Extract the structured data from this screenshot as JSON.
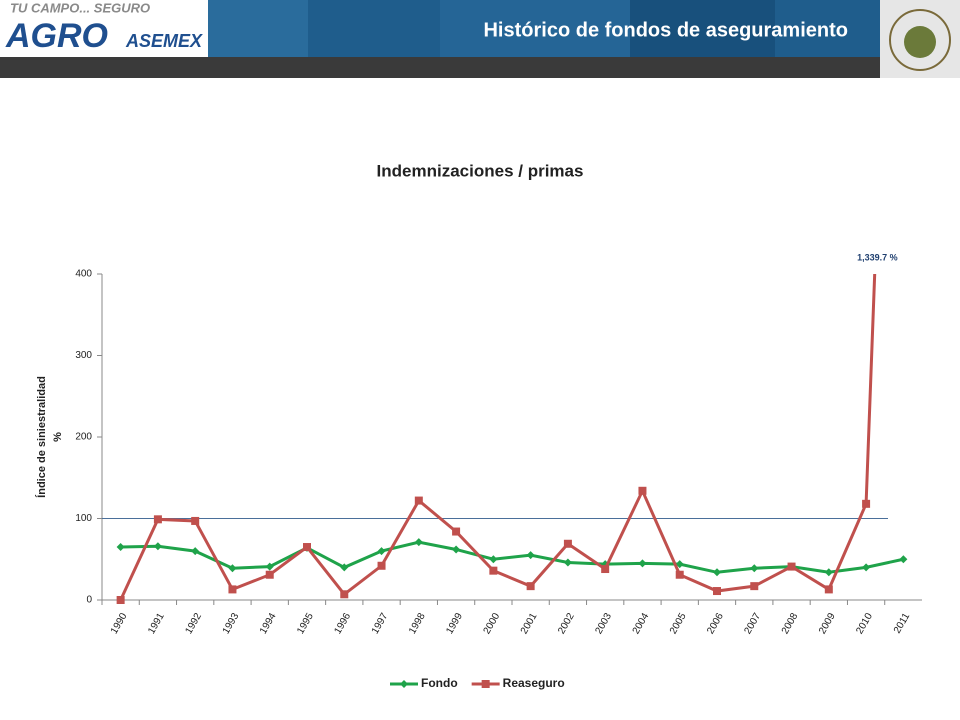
{
  "header": {
    "tagline": "TU CAMPO... SEGURO",
    "logo_main": "AGRO",
    "logo_sub": "ASEMEX",
    "title": "Histórico de fondos de aseguramiento"
  },
  "chart_data": {
    "type": "line",
    "title": "Indemnizaciones / primas",
    "y_label": [
      "Índice de siniestralidad",
      "%"
    ],
    "categories": [
      "1990",
      "1991",
      "1992",
      "1993",
      "1994",
      "1995",
      "1996",
      "1997",
      "1998",
      "1999",
      "2000",
      "2001",
      "2002",
      "2003",
      "2004",
      "2005",
      "2006",
      "2007",
      "2008",
      "2009",
      "2010",
      "2011"
    ],
    "series": [
      {
        "name": "Fondo",
        "color": "#1fa34a",
        "marker": "diamond",
        "values": [
          65,
          66,
          60,
          39,
          41,
          64,
          40,
          60,
          71,
          62,
          50,
          55,
          46,
          44,
          45,
          44,
          34,
          39,
          41,
          34,
          40,
          50
        ]
      },
      {
        "name": "Reaseguro",
        "color": "#c0504d",
        "marker": "square",
        "values": [
          0,
          99,
          97,
          13,
          31,
          65,
          7,
          42,
          122,
          84,
          36,
          17,
          69,
          38,
          134,
          31,
          11,
          17,
          41,
          13,
          118,
          1339.7
        ],
        "value_labels": [
          null,
          null,
          null,
          null,
          null,
          null,
          null,
          null,
          null,
          null,
          null,
          null,
          null,
          null,
          null,
          null,
          null,
          null,
          null,
          null,
          null,
          "1,339.7 %"
        ]
      }
    ],
    "reference_line": 100,
    "ylim": [
      0,
      400
    ],
    "yticks": [
      0,
      100,
      200,
      300,
      400
    ],
    "legend": "bottom"
  }
}
